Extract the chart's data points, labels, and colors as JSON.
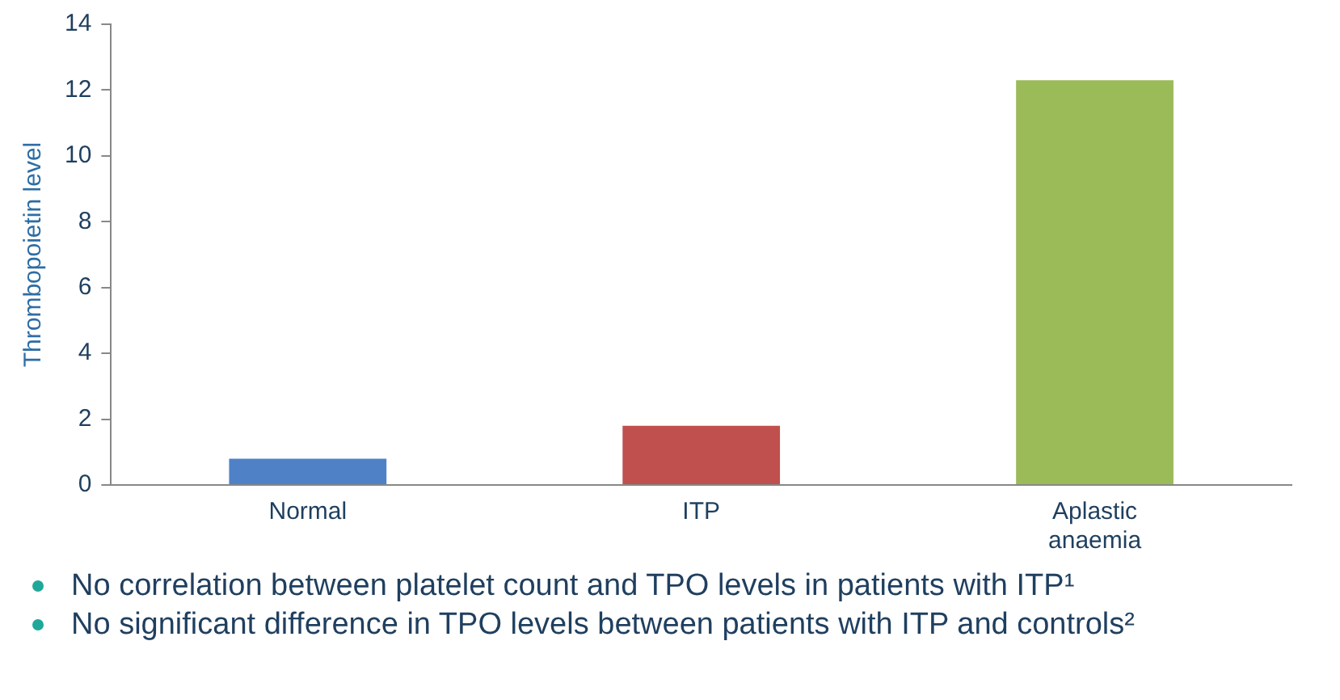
{
  "chart_data": {
    "type": "bar",
    "ylabel": "Thrombopoietin level",
    "categories": [
      "Normal",
      "ITP",
      "Aplastic anaemia"
    ],
    "values": [
      0.8,
      1.8,
      12.3
    ],
    "colors": [
      "#4f81c7",
      "#c0504d",
      "#9bbb59"
    ],
    "ylim": [
      0,
      14
    ],
    "yticks": [
      0,
      2,
      4,
      6,
      8,
      10,
      12,
      14
    ],
    "grid": false,
    "legend": false,
    "annotations": [
      "No correlation between platelet count and TPO levels in patients with ITP¹",
      "No significant difference in TPO levels between patients with ITP and controls²"
    ]
  }
}
